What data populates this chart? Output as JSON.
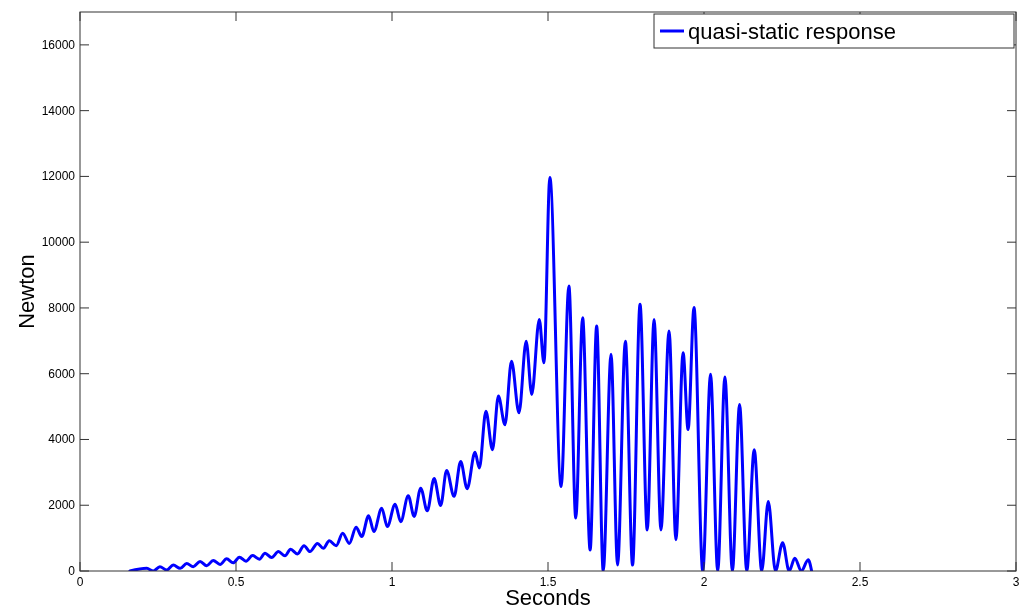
{
  "chart_data": {
    "type": "line",
    "xlabel": "Seconds",
    "ylabel": "Newton",
    "xlim": [
      0,
      3
    ],
    "xticks": [
      0,
      0.5,
      1,
      1.5,
      2,
      2.5,
      3
    ],
    "ylim": [
      0,
      17000
    ],
    "yticks": [
      0,
      2000,
      4000,
      6000,
      8000,
      10000,
      12000,
      14000,
      16000
    ],
    "grid": false,
    "legend": "top right",
    "line_style": "solid",
    "marker": "none",
    "series": [
      {
        "name": "quasi-static response",
        "color": "#0000ff",
        "x": [
          0.16,
          0.214,
          0.235,
          0.256,
          0.278,
          0.299,
          0.321,
          0.342,
          0.363,
          0.385,
          0.406,
          0.427,
          0.449,
          0.47,
          0.491,
          0.511,
          0.532,
          0.553,
          0.575,
          0.593,
          0.614,
          0.636,
          0.657,
          0.675,
          0.697,
          0.718,
          0.737,
          0.761,
          0.78,
          0.799,
          0.821,
          0.842,
          0.863,
          0.885,
          0.903,
          0.925,
          0.942,
          0.967,
          0.985,
          1.01,
          1.028,
          1.052,
          1.071,
          1.092,
          1.113,
          1.135,
          1.156,
          1.175,
          1.199,
          1.22,
          1.241,
          1.266,
          1.28,
          1.301,
          1.322,
          1.341,
          1.362,
          1.383,
          1.407,
          1.43,
          1.448,
          1.472,
          1.487,
          1.506,
          1.542,
          1.567,
          1.589,
          1.611,
          1.635,
          1.656,
          1.677,
          1.702,
          1.723,
          1.748,
          1.771,
          1.795,
          1.818,
          1.84,
          1.862,
          1.888,
          1.91,
          1.933,
          1.949,
          1.968,
          1.996,
          2.021,
          2.044,
          2.067,
          2.091,
          2.114,
          2.137,
          2.161,
          2.185,
          2.206,
          2.229,
          2.252,
          2.273,
          2.291,
          2.312,
          2.334,
          2.345
        ],
        "values": [
          0,
          80,
          0,
          130,
          30,
          180,
          80,
          230,
          130,
          290,
          160,
          320,
          200,
          370,
          250,
          420,
          300,
          470,
          360,
          540,
          410,
          590,
          460,
          660,
          520,
          770,
          590,
          840,
          690,
          920,
          770,
          1150,
          840,
          1330,
          1050,
          1680,
          1200,
          1910,
          1350,
          2030,
          1500,
          2290,
          1660,
          2520,
          1830,
          2810,
          1990,
          3060,
          2270,
          3330,
          2500,
          3610,
          3130,
          4860,
          3690,
          5320,
          4450,
          6380,
          4810,
          6990,
          5370,
          7650,
          6330,
          11970,
          2570,
          8670,
          1610,
          7700,
          640,
          7450,
          0,
          6590,
          180,
          6990,
          180,
          8110,
          1250,
          7650,
          1250,
          7300,
          950,
          6640,
          4300,
          8010,
          0,
          5980,
          0,
          5900,
          0,
          5060,
          0,
          3690,
          0,
          2110,
          0,
          860,
          0,
          390,
          0,
          340,
          0
        ]
      }
    ]
  }
}
